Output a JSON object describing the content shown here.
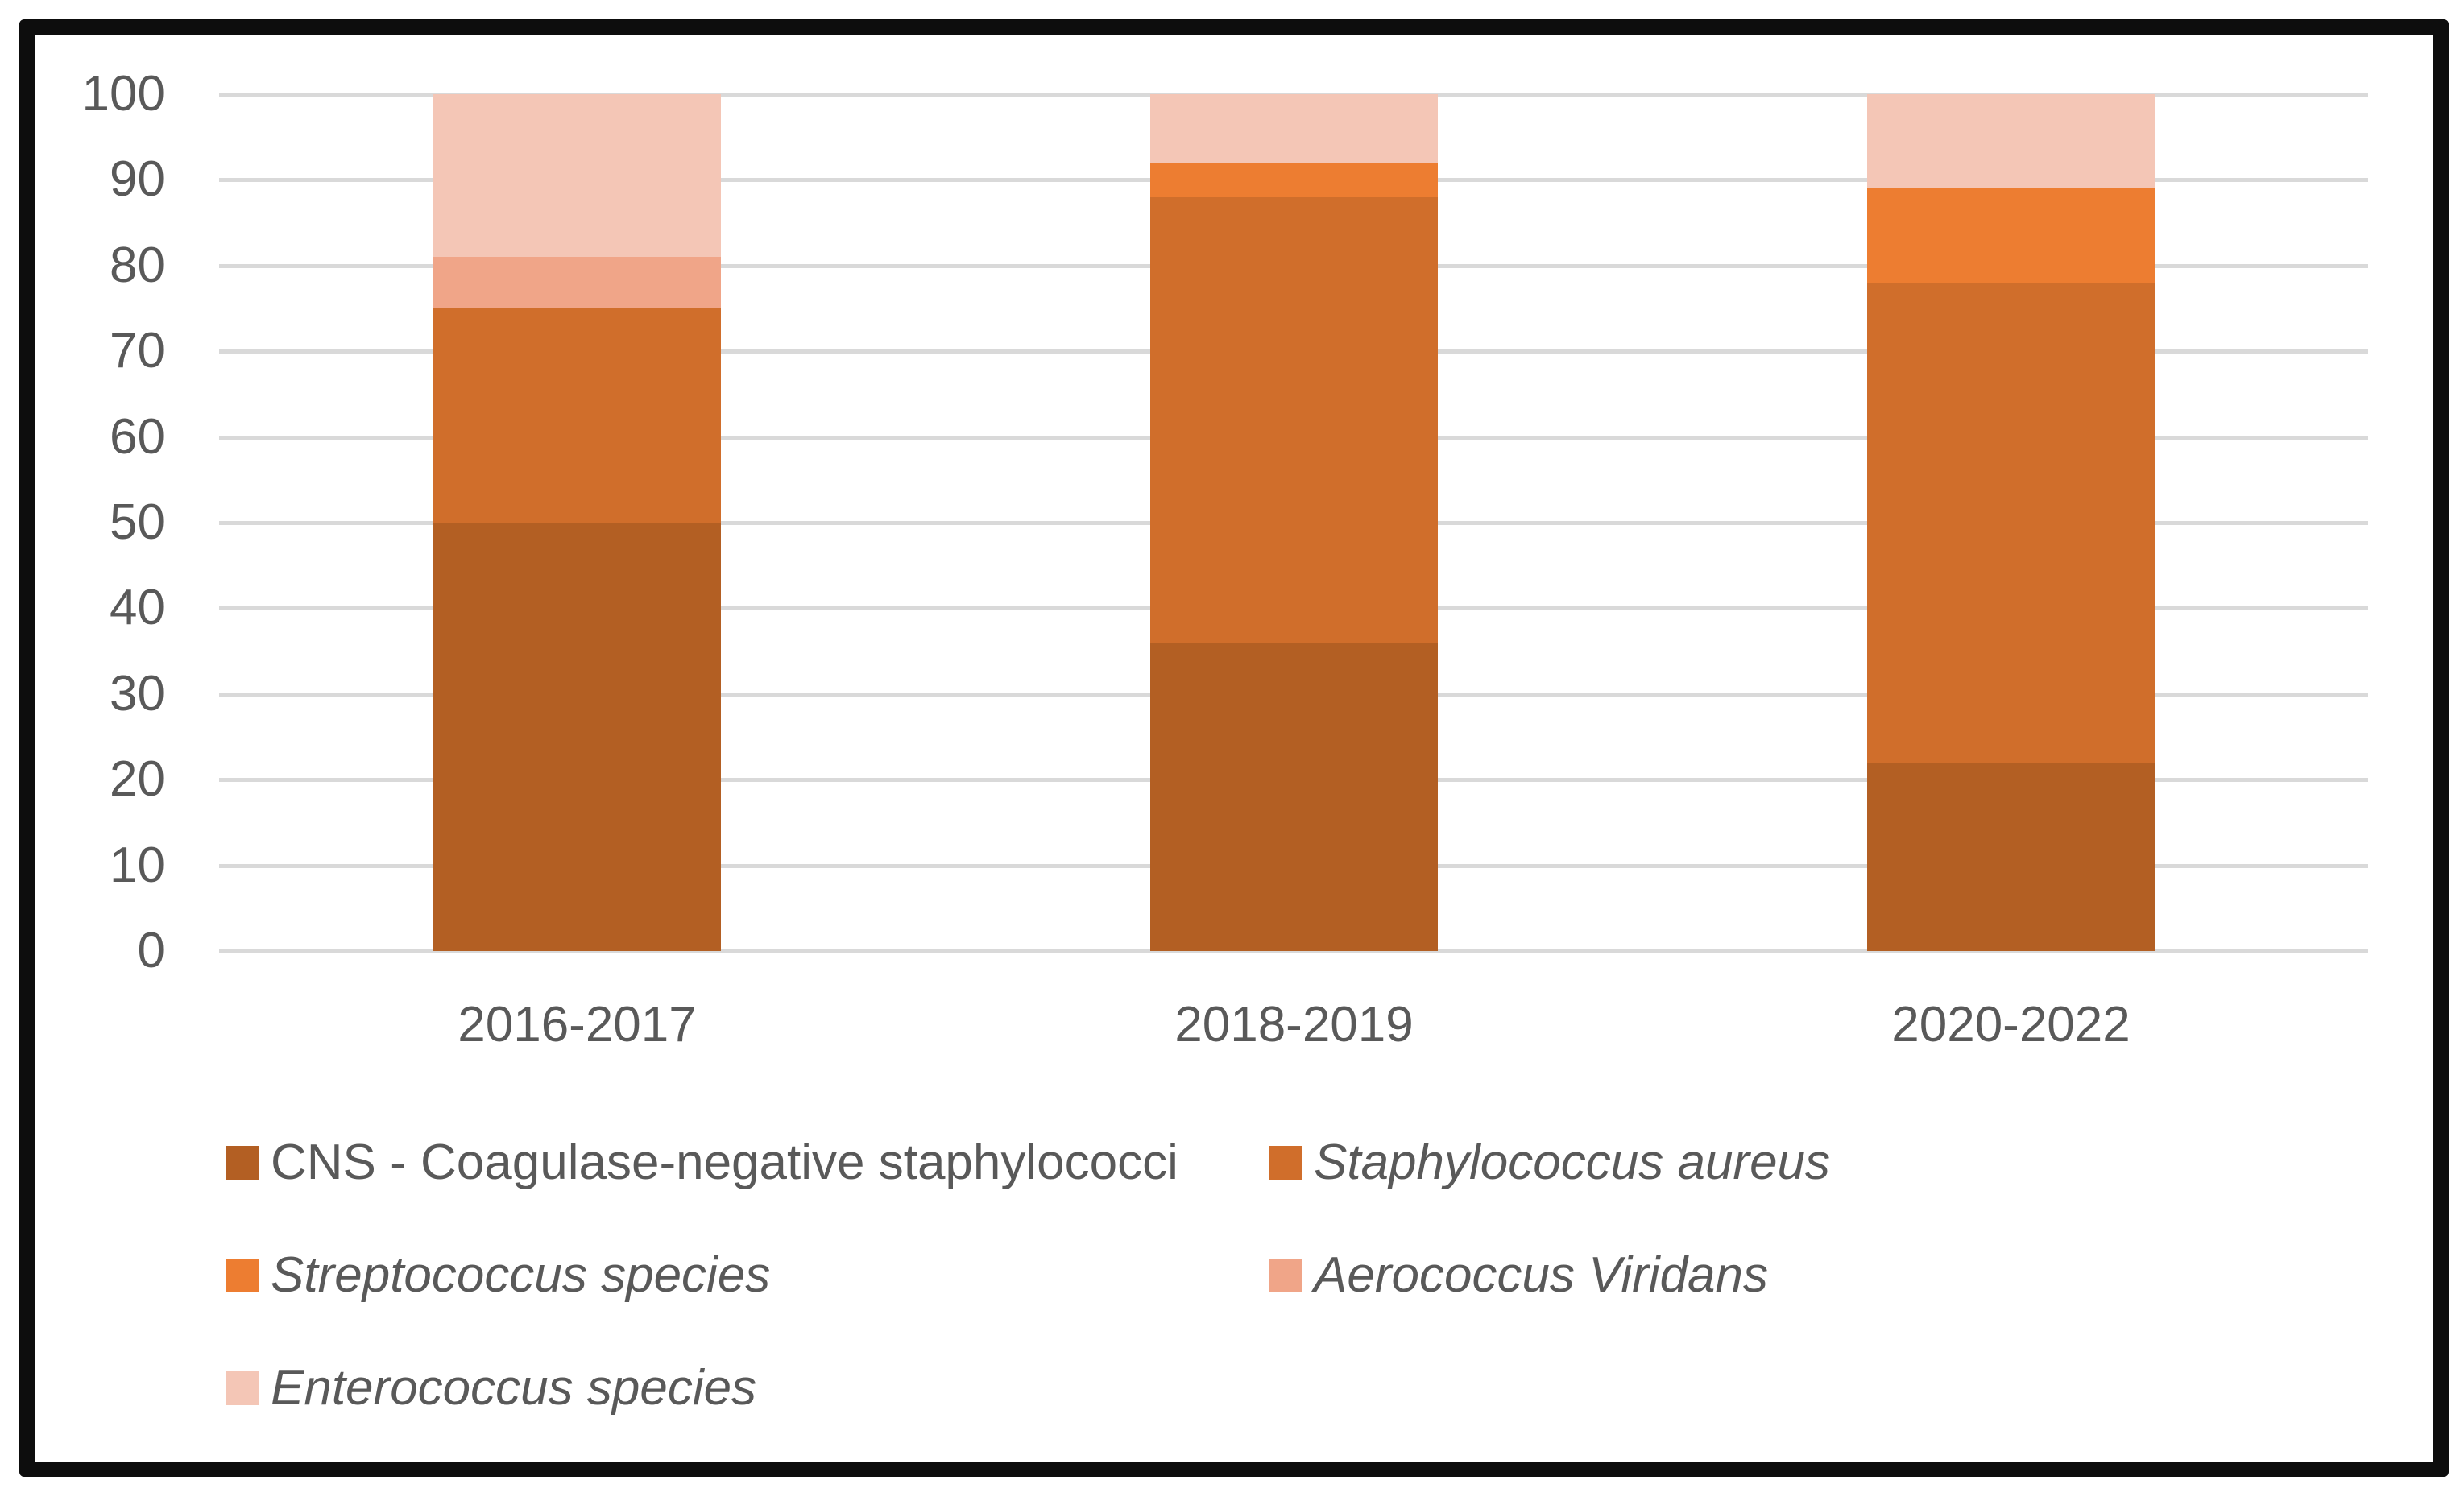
{
  "chart_data": {
    "type": "bar",
    "stacked": true,
    "title": "",
    "xlabel": "",
    "ylabel": "",
    "categories": [
      "2016-2017",
      "2018-2019",
      "2020-2022"
    ],
    "series": [
      {
        "name": "CNS - Coagulase-negative staphylococci",
        "values": [
          50,
          36,
          22
        ],
        "color": "#B35F23",
        "italic": false
      },
      {
        "name": "Staphylococcus aureus",
        "values": [
          25,
          52,
          56
        ],
        "color": "#D06E2B",
        "italic": true
      },
      {
        "name": "Streptococcus species",
        "values": [
          0,
          4,
          11
        ],
        "color": "#ED7D31",
        "italic": true
      },
      {
        "name": "Aerococcus Viridans",
        "values": [
          6,
          0,
          0
        ],
        "color": "#F0A588",
        "italic": true
      },
      {
        "name": "Enterococcus species",
        "values": [
          19,
          8,
          11
        ],
        "color": "#F4C6B6",
        "italic": true
      }
    ],
    "ylim": [
      0,
      100
    ],
    "yticks": [
      0,
      10,
      20,
      30,
      40,
      50,
      60,
      70,
      80,
      90,
      100
    ],
    "grid": true,
    "legend_position": "bottom",
    "colors": {
      "gridline": "#d9d9d9",
      "tick_label": "#595959",
      "frame_border": "#0d0d0d",
      "background": "#ffffff"
    }
  }
}
